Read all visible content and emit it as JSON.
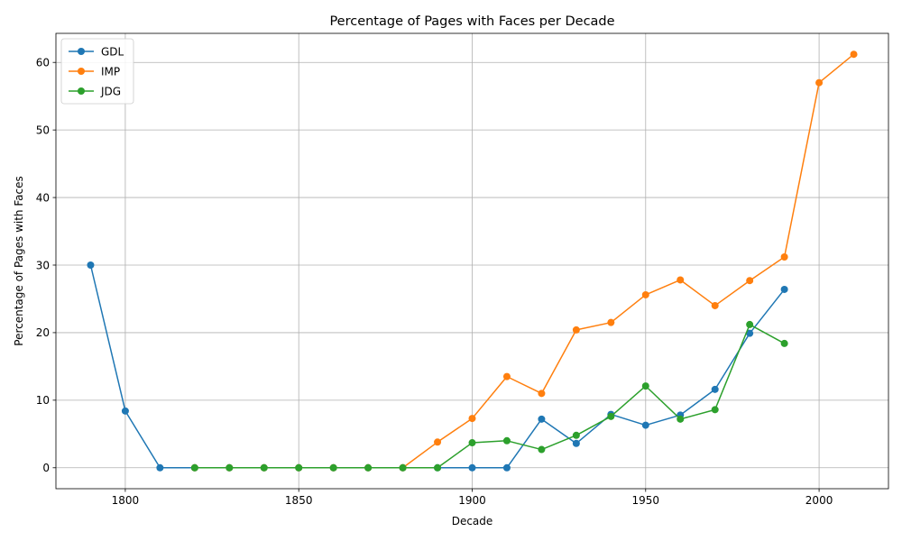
{
  "chart_data": {
    "type": "line",
    "title": "Percentage of Pages with Faces per Decade",
    "xlabel": "Decade",
    "ylabel": "Percentage of Pages with Faces",
    "xlim": [
      1780,
      2020
    ],
    "ylim": [
      -3.1,
      64.3
    ],
    "xticks": [
      1800,
      1850,
      1900,
      1950,
      2000
    ],
    "yticks": [
      0,
      10,
      20,
      30,
      40,
      50,
      60
    ],
    "grid": true,
    "legend_position": "top-left",
    "series": [
      {
        "name": "GDL",
        "color": "#1f77b4",
        "x": [
          1790,
          1800,
          1810,
          1820,
          1830,
          1840,
          1850,
          1860,
          1870,
          1880,
          1890,
          1900,
          1910,
          1920,
          1930,
          1940,
          1950,
          1960,
          1970,
          1980,
          1990
        ],
        "y": [
          30.0,
          8.4,
          0,
          0,
          0,
          0,
          0,
          0,
          0,
          0,
          0,
          0,
          0,
          7.2,
          3.6,
          7.9,
          6.3,
          7.8,
          11.6,
          19.9,
          26.4
        ]
      },
      {
        "name": "IMP",
        "color": "#ff7f0e",
        "x": [
          1820,
          1830,
          1840,
          1850,
          1860,
          1870,
          1880,
          1890,
          1900,
          1910,
          1920,
          1930,
          1940,
          1950,
          1960,
          1970,
          1980,
          1990,
          2000,
          2010
        ],
        "y": [
          0,
          0,
          0,
          0,
          0,
          0,
          0,
          3.8,
          7.3,
          13.5,
          11.0,
          20.4,
          21.5,
          25.6,
          27.8,
          24.0,
          27.7,
          31.2,
          57.0,
          61.2
        ]
      },
      {
        "name": "JDG",
        "color": "#2ca02c",
        "x": [
          1820,
          1830,
          1840,
          1850,
          1860,
          1870,
          1880,
          1890,
          1900,
          1910,
          1920,
          1930,
          1940,
          1950,
          1960,
          1970,
          1980,
          1990
        ],
        "y": [
          0,
          0,
          0,
          0,
          0,
          0,
          0,
          0,
          3.7,
          4.0,
          2.7,
          4.8,
          7.6,
          12.1,
          7.2,
          8.6,
          21.2,
          18.4
        ]
      }
    ]
  }
}
